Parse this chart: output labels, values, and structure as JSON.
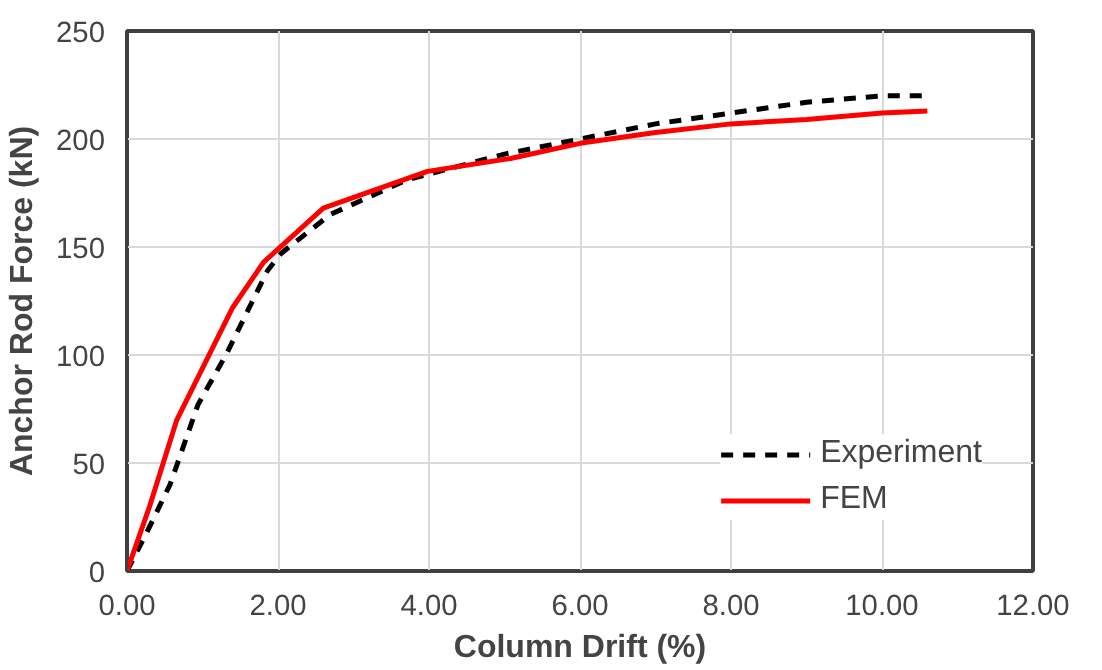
{
  "chart_data": {
    "type": "line",
    "xlabel": "Column Drift (%)",
    "ylabel": "Anchor Rod Force (kN)",
    "xlim": [
      0,
      12
    ],
    "ylim": [
      0,
      250
    ],
    "xticks": [
      {
        "value": 0,
        "label": "0.00"
      },
      {
        "value": 2,
        "label": "2.00"
      },
      {
        "value": 4,
        "label": "4.00"
      },
      {
        "value": 6,
        "label": "6.00"
      },
      {
        "value": 8,
        "label": "8.00"
      },
      {
        "value": 10,
        "label": "10.00"
      },
      {
        "value": 12,
        "label": "12.00"
      }
    ],
    "yticks": [
      0,
      50,
      100,
      150,
      200,
      250
    ],
    "grid": true,
    "legend": "bottom right",
    "series": [
      {
        "name": "Experiment",
        "color": "#000000",
        "line_style": "dashed",
        "x": [
          0,
          0.25,
          0.57,
          0.94,
          1.31,
          1.86,
          2.04,
          2.69,
          3.7,
          5.0,
          6.0,
          7.0,
          8.0,
          9.0,
          10.0,
          10.6
        ],
        "values": [
          0,
          17,
          40,
          77,
          100,
          139,
          147,
          165,
          181,
          193,
          200,
          207,
          212,
          217,
          220,
          220
        ]
      },
      {
        "name": "FEM",
        "color": "#ff0000",
        "line_style": "solid",
        "x": [
          0,
          0.3,
          0.66,
          1.03,
          1.4,
          1.81,
          2.6,
          3.98,
          5.08,
          6.0,
          7.0,
          8.0,
          9.0,
          10.0,
          10.6
        ],
        "values": [
          0,
          30,
          70,
          96,
          122,
          143,
          168,
          185,
          191,
          198,
          203,
          207,
          209,
          212,
          213
        ]
      }
    ]
  }
}
